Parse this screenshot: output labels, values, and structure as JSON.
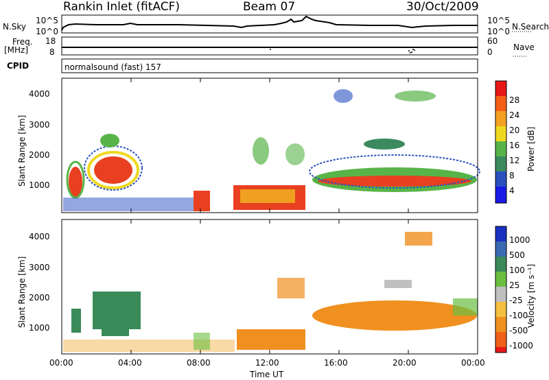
{
  "header": {
    "station": "Rankin Inlet (fitACF)",
    "beam": "Beam 07",
    "date": "30/Oct/2009"
  },
  "top_panels": {
    "nsky_label": "N.Sky",
    "nsky_ticks": [
      "10^5",
      "10^0"
    ],
    "nsearch_label": "N.Search",
    "freq_label_1": "Freq.",
    "freq_label_2": "[MHz]",
    "freq_ticks": [
      "18",
      "8"
    ],
    "nave_label": "Nave",
    "nave_ticks": [
      "60",
      "0"
    ],
    "cpid_label": "CPID",
    "cpid_text": "normalsound (fast) 157"
  },
  "chart_data": [
    {
      "type": "heatmap",
      "name": "power",
      "ylabel": "Slant Range [km]",
      "xlabel": "",
      "y_ticks": [
        "1000",
        "2000",
        "3000",
        "4000"
      ],
      "colorbar_label": "Power [dB]",
      "colorbar_ticks": [
        "4",
        "8",
        "12",
        "16",
        "20",
        "24",
        "28"
      ],
      "colorbar_colors": [
        "#1a1ae6",
        "#2a50c0",
        "#3c8a60",
        "#58b448",
        "#f0d820",
        "#f4a020",
        "#f46018",
        "#e81818"
      ],
      "ylim": [
        200,
        4500
      ],
      "xlim_hours": [
        0,
        24
      ]
    },
    {
      "type": "heatmap",
      "name": "velocity",
      "ylabel": "Slant Range [km]",
      "xlabel": "Time UT",
      "y_ticks": [
        "1000",
        "2000",
        "3000",
        "4000"
      ],
      "x_ticks": [
        "00:00",
        "04:00",
        "08:00",
        "12:00",
        "16:00",
        "20:00",
        "00:00"
      ],
      "colorbar_label": "Velocity [m s⁻¹]",
      "colorbar_ticks": [
        "1000",
        "500",
        "100",
        "25",
        "-25",
        "-100",
        "-500",
        "-1000"
      ],
      "colorbar_colors": [
        "#1a30c0",
        "#3a6ab0",
        "#3a8a5a",
        "#6abf40",
        "#c0c0c0",
        "#f4c040",
        "#f09020",
        "#f06018",
        "#e81818"
      ],
      "ylim": [
        200,
        4500
      ],
      "xlim_hours": [
        0,
        24
      ]
    }
  ]
}
